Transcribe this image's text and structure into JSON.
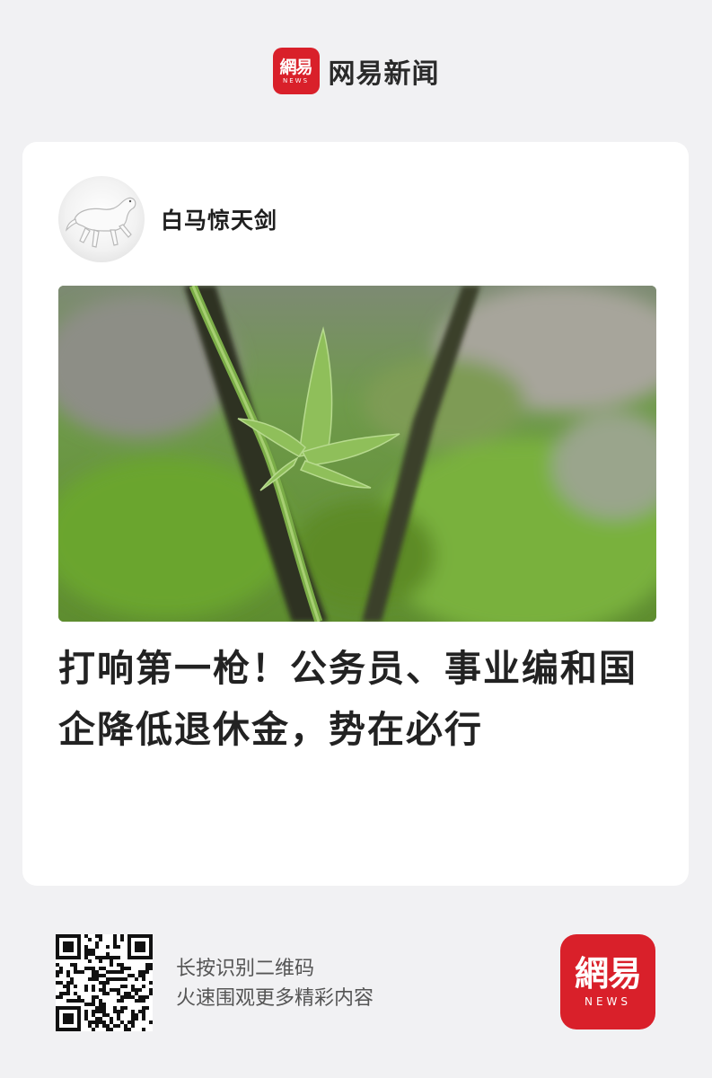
{
  "header": {
    "logo_text": "網易",
    "logo_subtext": "NEWS",
    "app_name": "网易新闻",
    "brand_color": "#d9202a"
  },
  "article": {
    "author": {
      "name": "白马惊天剑",
      "avatar_icon": "white-horse-avatar"
    },
    "cover_image": "plant-vine-photo",
    "headline": "打响第一枪！公务员、事业编和国企降低退休金，势在必行"
  },
  "footer": {
    "qr_icon": "qr-code-icon",
    "line1": "长按识别二维码",
    "line2": "火速围观更多精彩内容",
    "logo_text": "網易",
    "logo_subtext": "NEWS"
  }
}
